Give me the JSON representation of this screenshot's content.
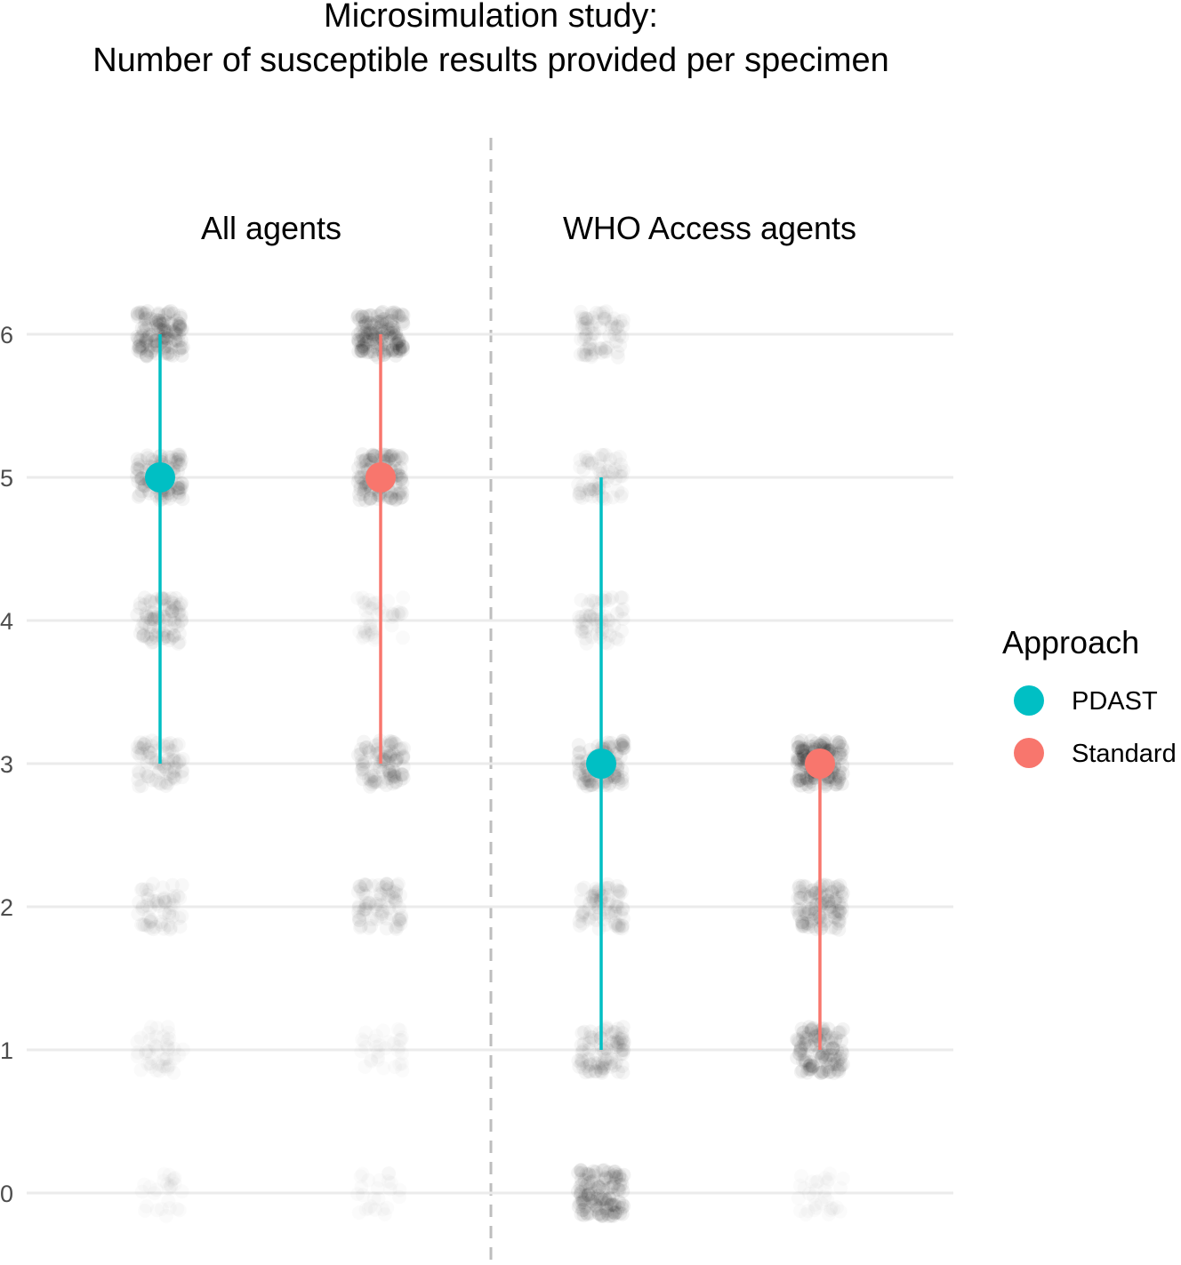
{
  "chart_data": {
    "type": "scatter",
    "title_line1": "Microsimulation study:",
    "title_line2": "Number of susceptible results provided per specimen",
    "facets": [
      {
        "label": "All agents",
        "groups": [
          {
            "approach": "PDAST",
            "median": 5,
            "low": 3,
            "high": 6,
            "jitter_density": {
              "0": 0.05,
              "1": 0.2,
              "2": 0.3,
              "3": 0.45,
              "4": 0.55,
              "5": 0.7,
              "6": 0.85
            }
          },
          {
            "approach": "Standard",
            "median": 5,
            "low": 3,
            "high": 6,
            "jitter_density": {
              "0": 0.04,
              "1": 0.1,
              "2": 0.45,
              "3": 0.6,
              "4": 0.2,
              "5": 0.8,
              "6": 0.95
            }
          }
        ]
      },
      {
        "label": "WHO Access agents",
        "groups": [
          {
            "approach": "PDAST",
            "median": 3,
            "low": 1,
            "high": 5,
            "jitter_density": {
              "0": 0.85,
              "1": 0.55,
              "2": 0.45,
              "3": 0.7,
              "4": 0.3,
              "5": 0.35,
              "6": 0.4
            }
          },
          {
            "approach": "Standard",
            "median": 3,
            "low": 1,
            "high": 3,
            "jitter_density": {
              "0": 0.1,
              "1": 0.8,
              "2": 0.7,
              "3": 1.0,
              "4": 0,
              "5": 0,
              "6": 0
            }
          }
        ]
      }
    ],
    "y_ticks": [
      "0",
      "1",
      "2",
      "3",
      "4",
      "5",
      "6"
    ],
    "ylim": [
      0,
      6
    ],
    "legend": {
      "title": "Approach",
      "position": "right",
      "entries": [
        {
          "label": "PDAST",
          "color": "#00BFC4"
        },
        {
          "label": "Standard",
          "color": "#F8766D"
        }
      ]
    },
    "grid": true
  }
}
